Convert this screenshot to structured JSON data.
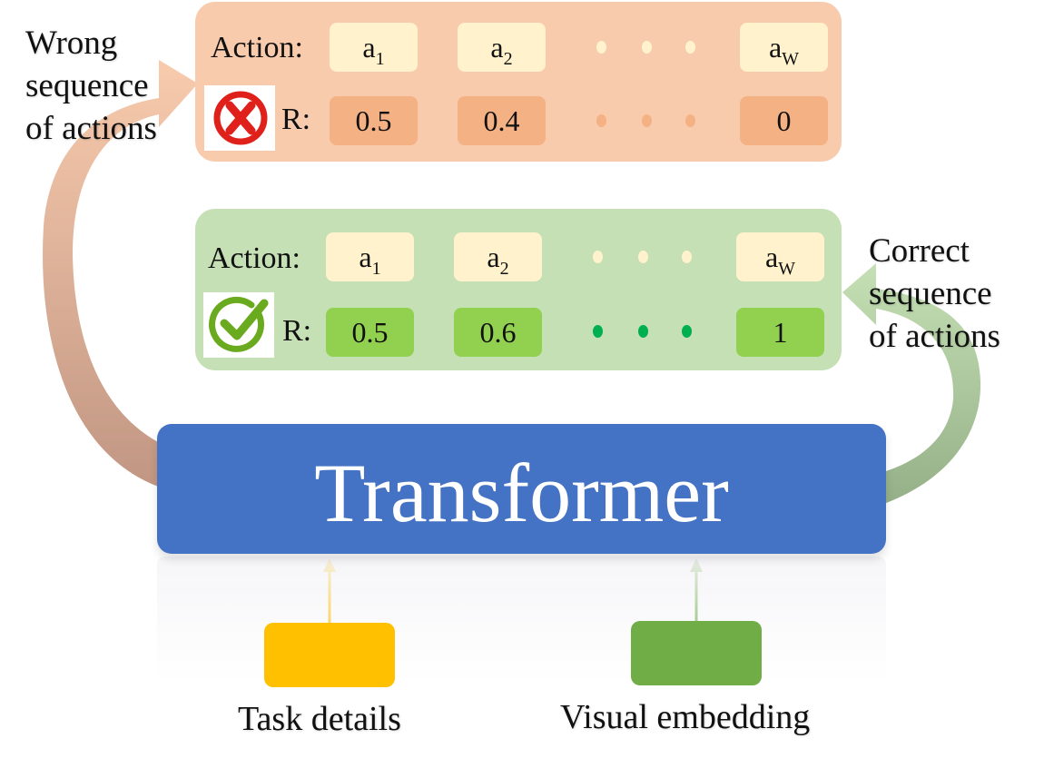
{
  "wrong_sequence": {
    "label_lines": [
      "Wrong",
      "sequence",
      "of actions"
    ],
    "action_label": "Action:",
    "reward_label": "R:",
    "actions": [
      {
        "base": "a",
        "sub": "1"
      },
      {
        "base": "a",
        "sub": "2"
      },
      {
        "base": "a",
        "sub": "W"
      }
    ],
    "rewards": [
      "0.5",
      "0.4",
      "0"
    ],
    "icon": "cross-circle-icon",
    "colors": {
      "panel": "#f8cbad",
      "reward_cell": "#f4b183",
      "action_cell": "#fff2cc",
      "icon": "#e0201b"
    }
  },
  "correct_sequence": {
    "label_lines": [
      "Correct",
      "sequence",
      "of actions"
    ],
    "action_label": "Action:",
    "reward_label": "R:",
    "actions": [
      {
        "base": "a",
        "sub": "1"
      },
      {
        "base": "a",
        "sub": "2"
      },
      {
        "base": "a",
        "sub": "W"
      }
    ],
    "rewards": [
      "0.5",
      "0.6",
      "1"
    ],
    "icon": "check-circle-icon",
    "colors": {
      "panel": "#c5e0b4",
      "reward_cell": "#92d050",
      "action_cell": "#fff2cc",
      "icon": "#6aaa1e"
    }
  },
  "transformer": {
    "label": "Transformer",
    "color": "#4472c4"
  },
  "inputs": [
    {
      "label": "Task details",
      "color": "#ffc000"
    },
    {
      "label": "Visual embedding",
      "color": "#70ad47"
    }
  ]
}
